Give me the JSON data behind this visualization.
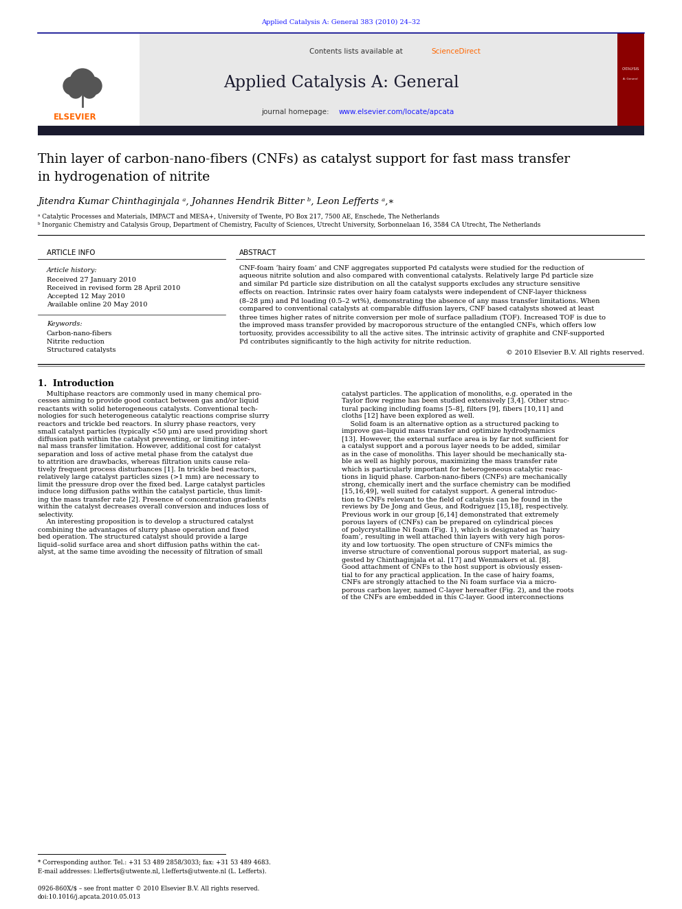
{
  "page_bg": "#ffffff",
  "top_journal_ref": "Applied Catalysis A: General 383 (2010) 24–32",
  "top_journal_color": "#1a1aff",
  "header_bg": "#e8e8e8",
  "header_sciencedirect_color": "#ff6600",
  "journal_title": "Applied Catalysis A: General",
  "journal_url_color": "#1a1aff",
  "article_title_line1": "Thin layer of carbon-nano-fibers (CNFs) as catalyst support for fast mass transfer",
  "article_title_line2": "in hydrogenation of nitrite",
  "authors": "Jitendra Kumar Chinthaginjala ᵃ, Johannes Hendrik Bitter ᵇ, Leon Lefferts ᵃ,∗",
  "affil_a": "ᵃ Catalytic Processes and Materials, IMPACT and MESA+, University of Twente, PO Box 217, 7500 AE, Enschede, The Netherlands",
  "affil_b": "ᵇ Inorganic Chemistry and Catalysis Group, Department of Chemistry, Faculty of Sciences, Utrecht University, Sorbonnelaan 16, 3584 CA Utrecht, The Netherlands",
  "section_article_info": "ARTICLE INFO",
  "section_abstract": "ABSTRACT",
  "article_history_label": "Article history:",
  "received": "Received 27 January 2010",
  "received_revised": "Received in revised form 28 April 2010",
  "accepted": "Accepted 12 May 2010",
  "available": "Available online 20 May 2010",
  "keywords_label": "Keywords:",
  "keyword1": "Carbon-nano-fibers",
  "keyword2": "Nitrite reduction",
  "keyword3": "Structured catalysts",
  "copyright": "© 2010 Elsevier B.V. All rights reserved.",
  "intro_title": "1.  Introduction",
  "footnote_star": "* Corresponding author. Tel.: +31 53 489 2858/3033; fax: +31 53 489 4683.",
  "footnote_email": "E-mail addresses: l.lefferts@utwente.nl, l.lefferts@utwente.nl (L. Lefferts).",
  "footer_issn": "0926-860X/$ – see front matter © 2010 Elsevier B.V. All rights reserved.",
  "footer_doi": "doi:10.1016/j.apcata.2010.05.013",
  "elsevier_color": "#ff6600",
  "dark_bar_color": "#1a1a2e",
  "header_line_color": "#00008b",
  "red_cover_color": "#8b0000",
  "abstract_lines": [
    "CNF-foam ‘hairy foam’ and CNF aggregates supported Pd catalysts were studied for the reduction of",
    "aqueous nitrite solution and also compared with conventional catalysts. Relatively large Pd particle size",
    "and similar Pd particle size distribution on all the catalyst supports excludes any structure sensitive",
    "effects on reaction. Intrinsic rates over hairy foam catalysts were independent of CNF-layer thickness",
    "(8–28 μm) and Pd loading (0.5–2 wt%), demonstrating the absence of any mass transfer limitations. When",
    "compared to conventional catalysts at comparable diffusion layers, CNF based catalysts showed at least",
    "three times higher rates of nitrite conversion per mole of surface palladium (TOF). Increased TOF is due to",
    "the improved mass transfer provided by macroporous structure of the entangled CNFs, which offers low",
    "tortuosity, provides accessibility to all the active sites. The intrinsic activity of graphite and CNF-supported",
    "Pd contributes significantly to the high activity for nitrite reduction."
  ],
  "intro_col1_lines": [
    "    Multiphase reactors are commonly used in many chemical pro-",
    "cesses aiming to provide good contact between gas and/or liquid",
    "reactants with solid heterogeneous catalysts. Conventional tech-",
    "nologies for such heterogeneous catalytic reactions comprise slurry",
    "reactors and trickle bed reactors. In slurry phase reactors, very",
    "small catalyst particles (typically <50 μm) are used providing short",
    "diffusion path within the catalyst preventing, or limiting inter-",
    "nal mass transfer limitation. However, additional cost for catalyst",
    "separation and loss of active metal phase from the catalyst due",
    "to attrition are drawbacks, whereas filtration units cause rela-",
    "tively frequent process disturbances [1]. In trickle bed reactors,",
    "relatively large catalyst particles sizes (>1 mm) are necessary to",
    "limit the pressure drop over the fixed bed. Large catalyst particles",
    "induce long diffusion paths within the catalyst particle, thus limit-",
    "ing the mass transfer rate [2]. Presence of concentration gradients",
    "within the catalyst decreases overall conversion and induces loss of",
    "selectivity.",
    "    An interesting proposition is to develop a structured catalyst",
    "combining the advantages of slurry phase operation and fixed",
    "bed operation. The structured catalyst should provide a large",
    "liquid–solid surface area and short diffusion paths within the cat-",
    "alyst, at the same time avoiding the necessity of filtration of small"
  ],
  "intro_col2_lines": [
    "catalyst particles. The application of monoliths, e.g. operated in the",
    "Taylor flow regime has been studied extensively [3,4]. Other struc-",
    "tural packing including foams [5–8], filters [9], fibers [10,11] and",
    "cloths [12] have been explored as well.",
    "    Solid foam is an alternative option as a structured packing to",
    "improve gas–liquid mass transfer and optimize hydrodynamics",
    "[13]. However, the external surface area is by far not sufficient for",
    "a catalyst support and a porous layer needs to be added, similar",
    "as in the case of monoliths. This layer should be mechanically sta-",
    "ble as well as highly porous, maximizing the mass transfer rate",
    "which is particularly important for heterogeneous catalytic reac-",
    "tions in liquid phase. Carbon-nano-fibers (CNFs) are mechanically",
    "strong, chemically inert and the surface chemistry can be modified",
    "[15,16,49], well suited for catalyst support. A general introduc-",
    "tion to CNFs relevant to the field of catalysis can be found in the",
    "reviews by De Jong and Geus, and Rodriguez [15,18], respectively.",
    "Previous work in our group [6,14] demonstrated that extremely",
    "porous layers of (CNFs) can be prepared on cylindrical pieces",
    "of polycrystalline Ni foam (Fig. 1), which is designated as ‘hairy",
    "foam’, resulting in well attached thin layers with very high poros-",
    "ity and low tortuosity. The open structure of CNFs mimics the",
    "inverse structure of conventional porous support material, as sug-",
    "gested by Chinthaginjala et al. [17] and Wenmakers et al. [8].",
    "Good attachment of CNFs to the host support is obviously essen-",
    "tial to for any practical application. In the case of hairy foams,",
    "CNFs are strongly attached to the Ni foam surface via a micro-",
    "porous carbon layer, named C-layer hereafter (Fig. 2), and the roots",
    "of the CNFs are embedded in this C-layer. Good interconnections"
  ]
}
